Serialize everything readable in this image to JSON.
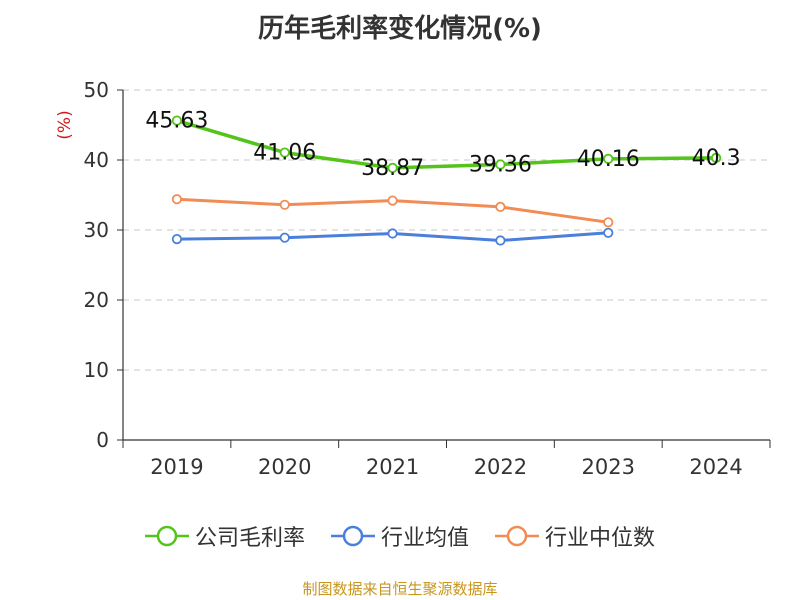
{
  "title": "历年毛利率变化情况(%)",
  "source": "制图数据来自恒生聚源数据库",
  "colors": {
    "source": "#c8961e",
    "unit": "#d11c1c"
  },
  "chart_data": {
    "type": "line",
    "title": "历年毛利率变化情况(%)",
    "ylabel": "(%)",
    "ylim": [
      0,
      50
    ],
    "y_ticks": [
      "0",
      "10",
      "20",
      "30",
      "40",
      "50"
    ],
    "categories": [
      "2019",
      "2020",
      "2021",
      "2022",
      "2023",
      "2024"
    ],
    "grid": true,
    "legend_position": "bottom",
    "series": [
      {
        "name": "公司毛利率",
        "color": "#52c41a",
        "values": [
          45.63,
          41.06,
          38.87,
          39.36,
          40.16,
          40.3
        ],
        "labels": [
          "45.63",
          "41.06",
          "38.87",
          "39.36",
          "40.16",
          "40.3"
        ]
      },
      {
        "name": "行业均值",
        "color": "#4a7fdc",
        "values": [
          28.7,
          28.9,
          29.5,
          28.5,
          29.6,
          null
        ]
      },
      {
        "name": "行业中位数",
        "color": "#f28c55",
        "values": [
          34.4,
          33.6,
          34.2,
          33.3,
          31.1,
          null
        ]
      }
    ]
  }
}
